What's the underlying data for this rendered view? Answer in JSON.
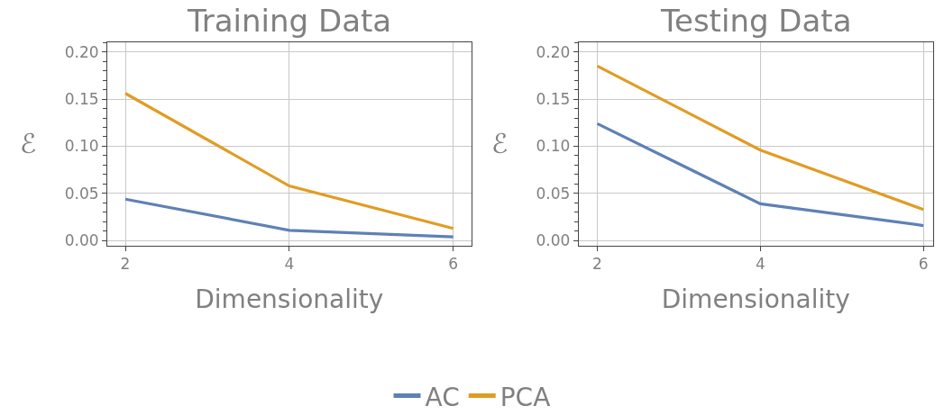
{
  "chart_data": [
    {
      "type": "line",
      "title": "Training Data",
      "xlabel": "Dimensionality",
      "ylabel": "ℰ",
      "x": [
        2,
        4,
        6
      ],
      "series": [
        {
          "name": "AC",
          "color": "#5e81b5",
          "values": [
            0.044,
            0.011,
            0.004
          ]
        },
        {
          "name": "PCA",
          "color": "#e19c24",
          "values": [
            0.156,
            0.058,
            0.013
          ]
        }
      ],
      "xlim": [
        1.78,
        6.22
      ],
      "ylim": [
        -0.005,
        0.21
      ],
      "xticks": [
        2,
        4,
        6
      ],
      "yticks": [
        {
          "value": 0,
          "label": "0.00"
        },
        {
          "value": 0.05,
          "label": "0.05"
        },
        {
          "value": 0.1,
          "label": "0.10"
        },
        {
          "value": 0.15,
          "label": "0.15"
        },
        {
          "value": 0.2,
          "label": "0.20"
        }
      ],
      "grid": true,
      "legend": "bottom",
      "line_style": "solid"
    },
    {
      "type": "line",
      "title": "Testing Data",
      "xlabel": "Dimensionality",
      "ylabel": "ℰ",
      "x": [
        2,
        4,
        6
      ],
      "series": [
        {
          "name": "AC",
          "color": "#5e81b5",
          "values": [
            0.124,
            0.039,
            0.016
          ]
        },
        {
          "name": "PCA",
          "color": "#e19c24",
          "values": [
            0.185,
            0.096,
            0.033
          ]
        }
      ],
      "xlim": [
        1.77,
        6.12
      ],
      "ylim": [
        -0.005,
        0.21
      ],
      "xticks": [
        2,
        4,
        6
      ],
      "yticks": [
        {
          "value": 0,
          "label": "0.00"
        },
        {
          "value": 0.05,
          "label": "0.05"
        },
        {
          "value": 0.1,
          "label": "0.10"
        },
        {
          "value": 0.15,
          "label": "0.15"
        },
        {
          "value": 0.2,
          "label": "0.20"
        }
      ],
      "grid": true,
      "legend": "bottom",
      "line_style": "solid"
    }
  ]
}
